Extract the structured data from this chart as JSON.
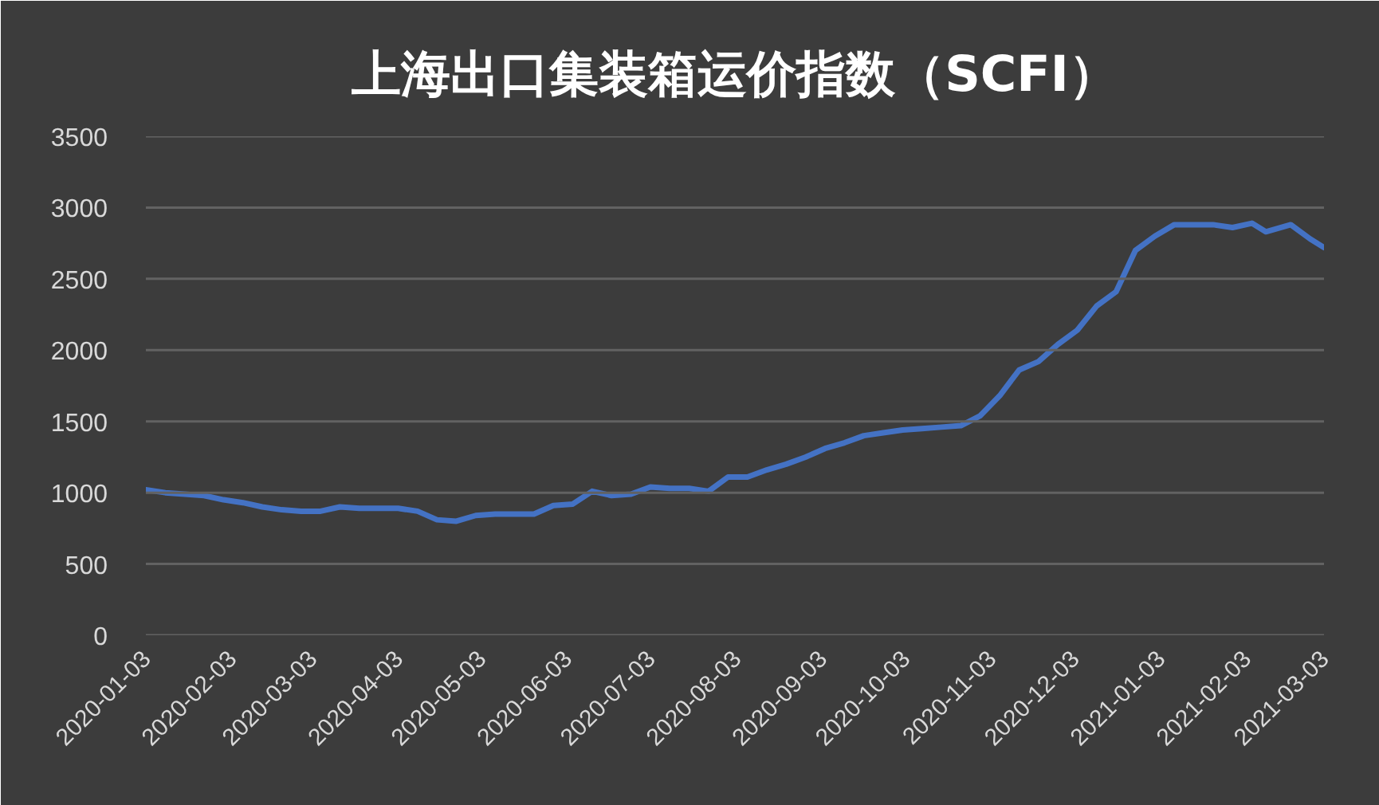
{
  "chart_data": {
    "type": "line",
    "title": "上海出口集装箱运价指数（SCFI）",
    "x": [
      "2020-01-03",
      "2020-01-10",
      "2020-01-17",
      "2020-01-24",
      "2020-01-31",
      "2020-02-07",
      "2020-02-14",
      "2020-02-21",
      "2020-02-28",
      "2020-03-06",
      "2020-03-13",
      "2020-03-20",
      "2020-03-27",
      "2020-04-03",
      "2020-04-10",
      "2020-04-17",
      "2020-04-24",
      "2020-05-01",
      "2020-05-08",
      "2020-05-15",
      "2020-05-22",
      "2020-05-29",
      "2020-06-05",
      "2020-06-12",
      "2020-06-19",
      "2020-06-26",
      "2020-07-03",
      "2020-07-10",
      "2020-07-17",
      "2020-07-24",
      "2020-07-31",
      "2020-08-07",
      "2020-08-14",
      "2020-08-21",
      "2020-08-28",
      "2020-09-04",
      "2020-09-11",
      "2020-09-18",
      "2020-09-25",
      "2020-10-02",
      "2020-10-09",
      "2020-10-16",
      "2020-10-23",
      "2020-10-30",
      "2020-11-06",
      "2020-11-13",
      "2020-11-20",
      "2020-11-27",
      "2020-12-04",
      "2020-12-11",
      "2020-12-18",
      "2020-12-25",
      "2021-01-01",
      "2021-01-08",
      "2021-01-15",
      "2021-01-22",
      "2021-01-29",
      "2021-02-05",
      "2021-02-10",
      "2021-02-19",
      "2021-02-26",
      "2021-03-03"
    ],
    "series": [
      {
        "color": "#4472c4",
        "values": [
          1020,
          1000,
          990,
          980,
          950,
          930,
          900,
          880,
          870,
          870,
          900,
          890,
          890,
          890,
          870,
          810,
          800,
          840,
          850,
          850,
          850,
          910,
          920,
          1010,
          980,
          990,
          1040,
          1030,
          1030,
          1010,
          1110,
          1110,
          1160,
          1200,
          1250,
          1310,
          1350,
          1400,
          1420,
          1440,
          1450,
          1460,
          1470,
          1540,
          1680,
          1860,
          1920,
          2040,
          2140,
          2310,
          2410,
          2700,
          2800,
          2880,
          2880,
          2880,
          2860,
          2890,
          2830,
          2880,
          2780,
          2720
        ]
      }
    ],
    "xlim": [
      "2020-01-03",
      "2021-03-03"
    ],
    "xticks": [
      "2020-01-03",
      "2020-02-03",
      "2020-03-03",
      "2020-04-03",
      "2020-05-03",
      "2020-06-03",
      "2020-07-03",
      "2020-08-03",
      "2020-09-03",
      "2020-10-03",
      "2020-11-03",
      "2020-12-03",
      "2021-01-03",
      "2021-02-03",
      "2021-03-03"
    ],
    "ylim": [
      0,
      3500
    ],
    "yticks": [
      0,
      500,
      1000,
      1500,
      2000,
      2500,
      3000,
      3500
    ],
    "grid": "y",
    "line_style": "solid"
  }
}
